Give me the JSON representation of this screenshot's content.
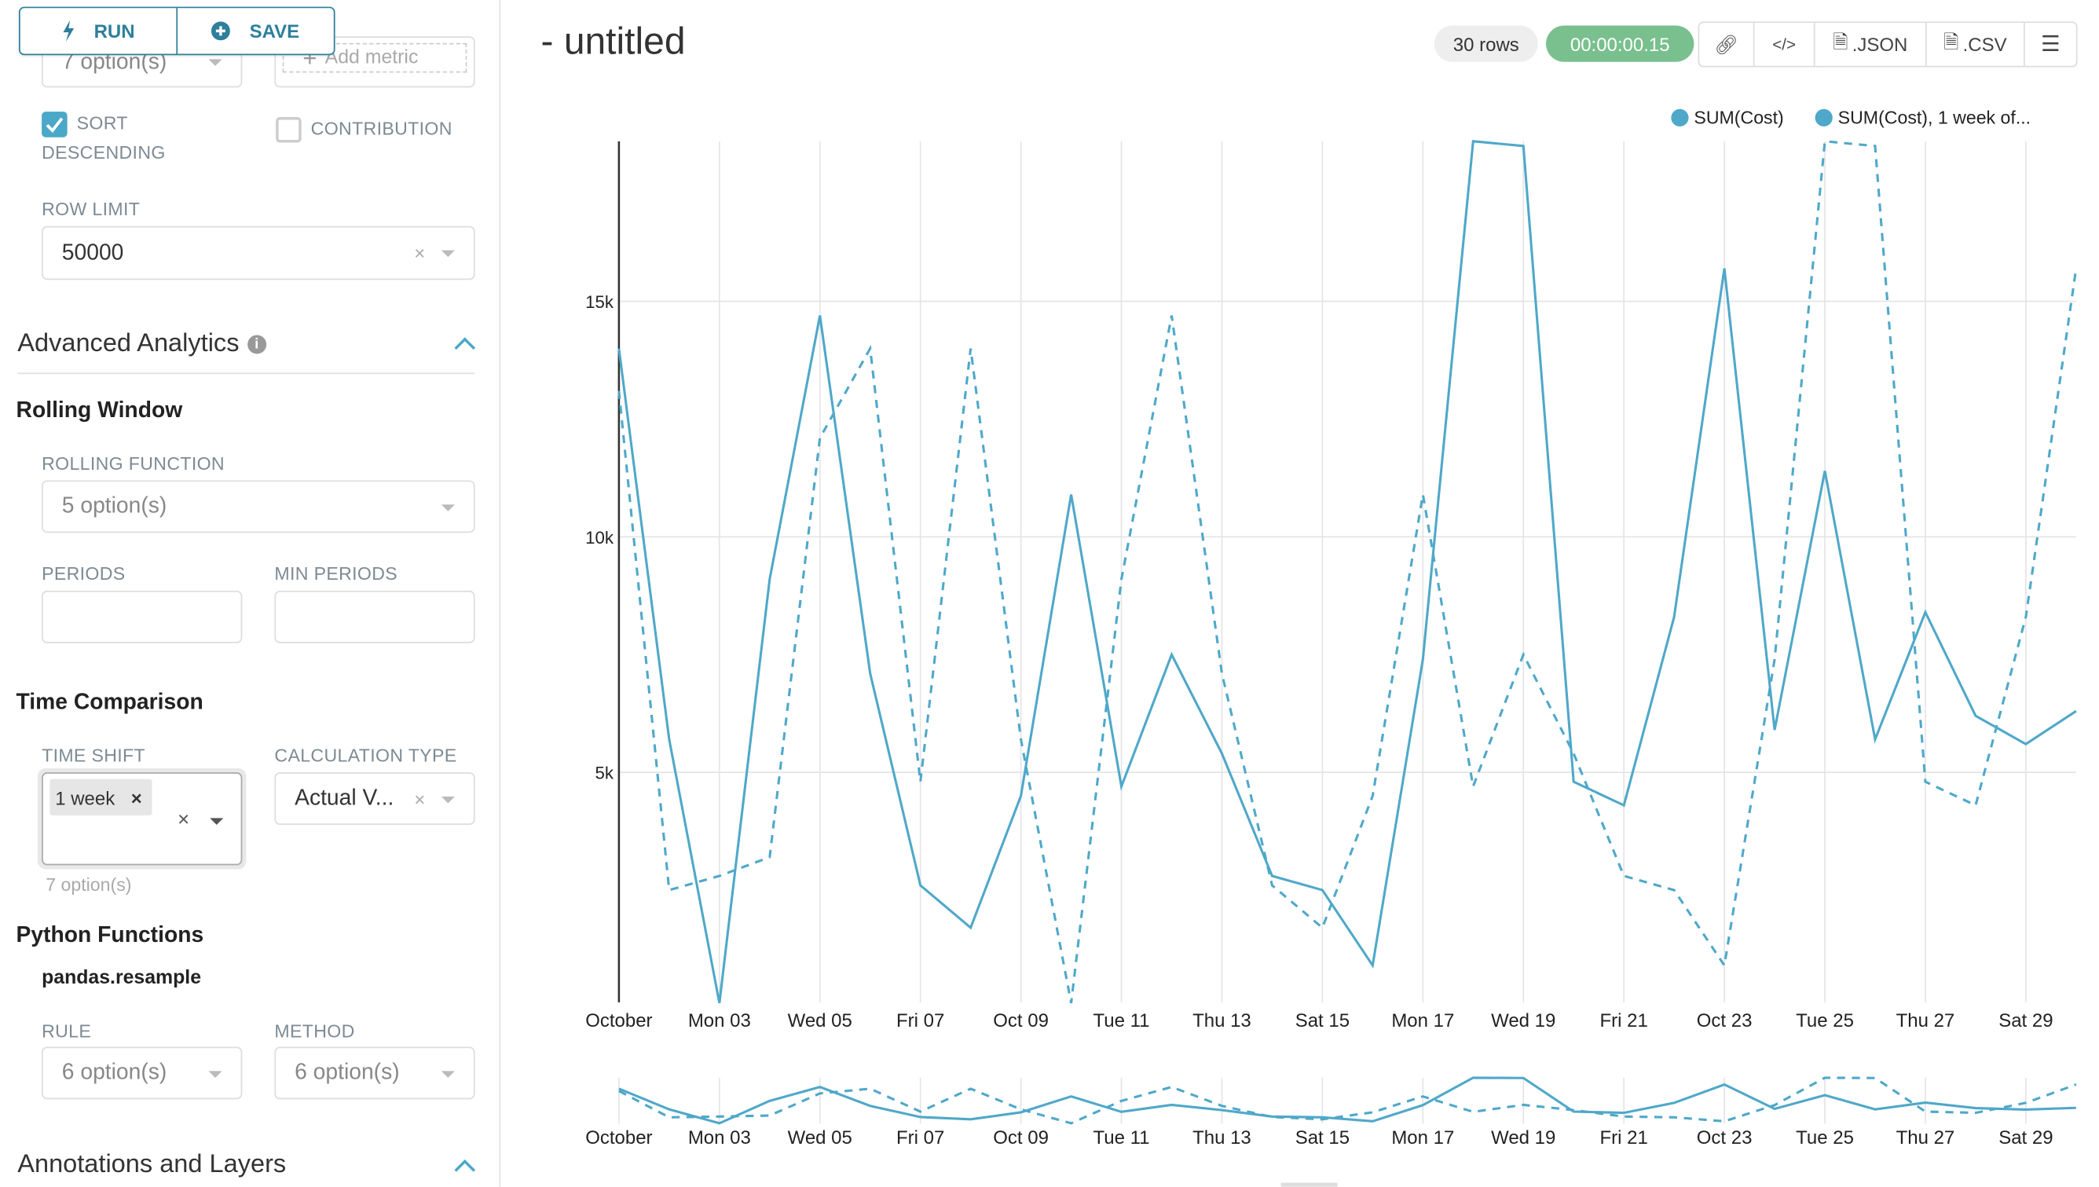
{
  "toolbar": {
    "run_label": "RUN",
    "save_label": "SAVE",
    "run_icon": "bolt-icon",
    "save_icon": "plus-circle-icon"
  },
  "sidebar": {
    "partial_select": "7 option(s)",
    "add_metric": "Add metric",
    "sort_descending": {
      "label_line1": "SORT",
      "label_line2": "DESCENDING",
      "checked": true
    },
    "contribution": {
      "label": "CONTRIBUTION",
      "checked": false
    },
    "row_limit": {
      "label": "ROW LIMIT",
      "value": "50000"
    },
    "advanced_analytics": {
      "title": "Advanced Analytics"
    },
    "rolling_window": {
      "title": "Rolling Window",
      "rolling_function_label": "ROLLING FUNCTION",
      "rolling_function_placeholder": "5 option(s)",
      "periods_label": "PERIODS",
      "min_periods_label": "MIN PERIODS"
    },
    "time_comparison": {
      "title": "Time Comparison",
      "time_shift_label": "TIME SHIFT",
      "time_shift_tag": "1 week",
      "time_shift_hint": "7 option(s)",
      "calculation_type_label": "CALCULATION TYPE",
      "calculation_type_value": "Actual V..."
    },
    "python_functions": {
      "title": "Python Functions",
      "subtitle": "pandas.resample",
      "rule_label": "RULE",
      "rule_placeholder": "6 option(s)",
      "method_label": "METHOD",
      "method_placeholder": "6 option(s)"
    },
    "annotations": {
      "title": "Annotations and Layers"
    }
  },
  "header": {
    "title": "- untitled",
    "rows_badge": "30 rows",
    "timer_badge": "00:00:00.15",
    "timer_color": "#79c08e",
    "json_label": ".JSON",
    "csv_label": ".CSV"
  },
  "chart_data": {
    "type": "line",
    "x_days": [
      1,
      2,
      3,
      4,
      5,
      6,
      7,
      8,
      9,
      10,
      11,
      12,
      13,
      14,
      15,
      16,
      17,
      18,
      19,
      20,
      21,
      22,
      23,
      24,
      25,
      26,
      27,
      28,
      29,
      30
    ],
    "x_tick_days": [
      1,
      3,
      5,
      7,
      9,
      11,
      13,
      15,
      17,
      19,
      21,
      23,
      25,
      27,
      29
    ],
    "x_tick_labels": [
      "October",
      "Mon 03",
      "Wed 05",
      "Fri 07",
      "Oct 09",
      "Tue 11",
      "Thu 13",
      "Sat 15",
      "Mon 17",
      "Wed 19",
      "Fri 21",
      "Oct 23",
      "Tue 25",
      "Thu 27",
      "Sat 29"
    ],
    "y_ticks": [
      5000,
      10000,
      15000
    ],
    "y_tick_labels": [
      "5k",
      "10k",
      "15k"
    ],
    "ylim": [
      0,
      18400
    ],
    "grid": true,
    "legend_position": "top-right",
    "color": "#4fa8c9",
    "series": [
      {
        "name": "SUM(Cost)",
        "style": "solid",
        "values": [
          14000,
          5700,
          100,
          9100,
          14700,
          7100,
          2600,
          1700,
          4500,
          10900,
          4700,
          7500,
          5400,
          2800,
          2500,
          900,
          7400,
          18400,
          18300,
          4800,
          4300,
          8300,
          15700,
          5900,
          11400,
          5700,
          8400,
          6200,
          5600,
          6300
        ]
      },
      {
        "name": "SUM(Cost), 1 week of...",
        "style": "dashed",
        "values": [
          13100,
          2500,
          2800,
          3200,
          12100,
          14000,
          4800,
          14000,
          5700,
          100,
          9100,
          14700,
          7100,
          2600,
          1700,
          4500,
          10900,
          4700,
          7500,
          5400,
          2800,
          2500,
          900,
          7400,
          18400,
          18300,
          4800,
          4300,
          8300,
          15700
        ]
      }
    ]
  }
}
